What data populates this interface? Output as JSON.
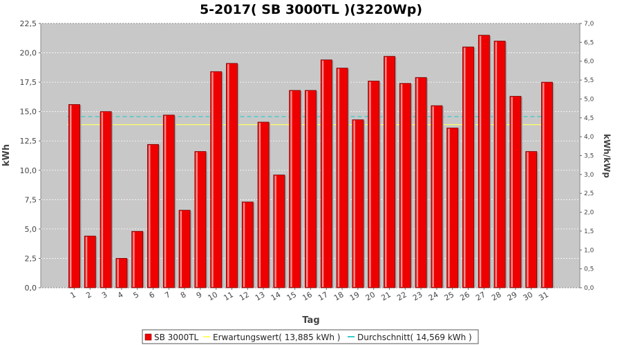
{
  "chart_data": {
    "type": "bar",
    "title": "5-2017( SB 3000TL )(3220Wp)",
    "xlabel": "Tag",
    "ylabel": "kWh",
    "ylabel_right": "kWh/kWp",
    "ylim": [
      0,
      22.5
    ],
    "ylim_right": [
      0,
      7.0
    ],
    "yticks": [
      "0,0",
      "2,5",
      "5,0",
      "7,5",
      "10,0",
      "12,5",
      "15,0",
      "17,5",
      "20,0",
      "22,5"
    ],
    "yticks_right": [
      "0,0",
      "0,5",
      "1,0",
      "1,5",
      "2,0",
      "2,5",
      "3,0",
      "3,5",
      "4,0",
      "4,5",
      "5,0",
      "5,5",
      "6,0",
      "6,5",
      "7,0"
    ],
    "categories": [
      "1",
      "2",
      "3",
      "4",
      "5",
      "6",
      "7",
      "8",
      "9",
      "10",
      "11",
      "12",
      "13",
      "14",
      "15",
      "16",
      "17",
      "18",
      "19",
      "20",
      "21",
      "22",
      "23",
      "24",
      "25",
      "26",
      "27",
      "28",
      "29",
      "30",
      "31"
    ],
    "series": [
      {
        "name": "SB 3000TL",
        "color": "#ee0000",
        "values": [
          15.6,
          4.4,
          15.0,
          2.5,
          4.8,
          12.2,
          14.7,
          6.6,
          11.6,
          18.4,
          19.1,
          7.3,
          14.1,
          9.6,
          16.8,
          16.8,
          19.4,
          18.7,
          14.3,
          17.6,
          19.7,
          17.4,
          17.9,
          15.5,
          13.6,
          20.5,
          21.5,
          21.0,
          16.3,
          11.6,
          17.5
        ]
      }
    ],
    "reference_lines": [
      {
        "name": "Erwartungswert( 13,885 kWh )",
        "value": 13.885,
        "color": "#ffff66"
      },
      {
        "name": "Durchschnitt( 14,569 kWh )",
        "value": 14.569,
        "color": "#33cccc"
      }
    ],
    "grid": true,
    "legend_position": "bottom"
  },
  "legend": {
    "items": [
      {
        "label": "SB 3000TL",
        "kind": "box",
        "color": "#ee0000"
      },
      {
        "label": "Erwartungswert( 13,885 kWh )",
        "kind": "line",
        "color": "#ffff66"
      },
      {
        "label": "Durchschnitt( 14,569 kWh )",
        "kind": "line",
        "color": "#33cccc"
      }
    ]
  }
}
